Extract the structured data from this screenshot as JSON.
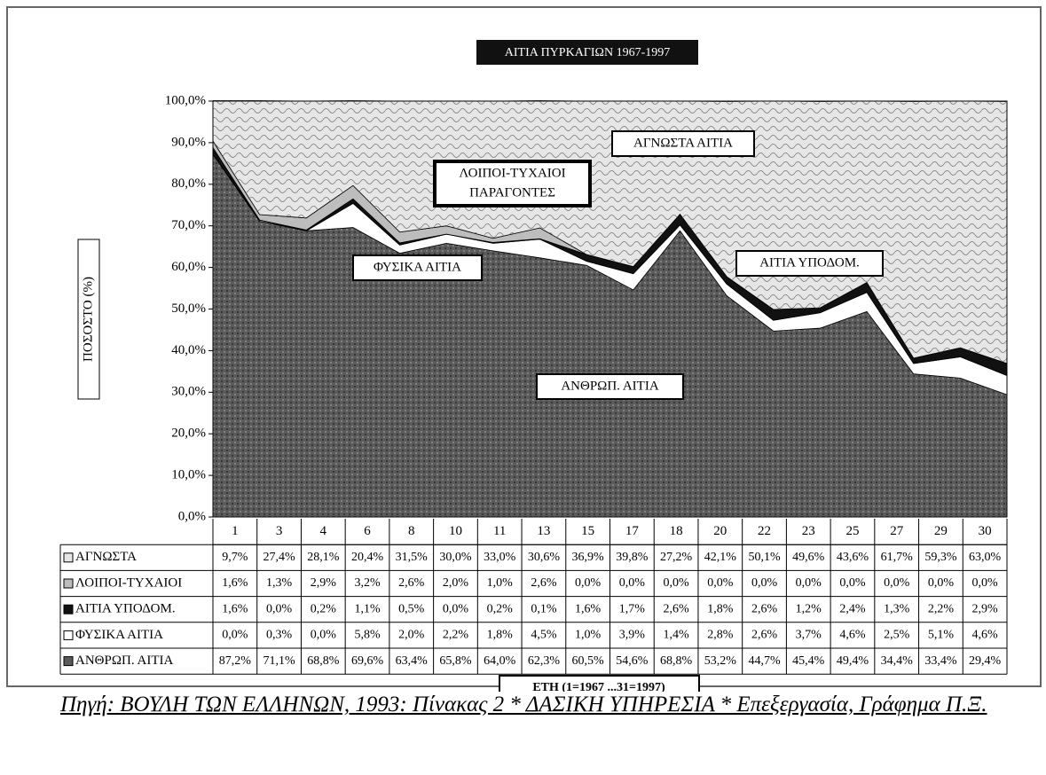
{
  "chart_data": {
    "type": "stacked-area",
    "title": "ΑΙΤΙΑ ΠΥΡΚΑΓΙΩΝ 1967-1997",
    "y_label": "ΠΟΣΟΣΤΟ (%)",
    "x_label": "ΕΤΗ (1=1967 ...31=1997)",
    "categories": [
      "1",
      "3",
      "4",
      "6",
      "8",
      "10",
      "11",
      "13",
      "15",
      "17",
      "18",
      "20",
      "22",
      "23",
      "25",
      "27",
      "29",
      "30"
    ],
    "ylim": [
      0,
      100
    ],
    "yticks": [
      {
        "value": 0,
        "label": "0,0%"
      },
      {
        "value": 10,
        "label": "10,0%"
      },
      {
        "value": 20,
        "label": "20,0%"
      },
      {
        "value": 30,
        "label": "30,0%"
      },
      {
        "value": 40,
        "label": "40,0%"
      },
      {
        "value": 50,
        "label": "50,0%"
      },
      {
        "value": 60,
        "label": "60,0%"
      },
      {
        "value": 70,
        "label": "70,0%"
      },
      {
        "value": 80,
        "label": "80,0%"
      },
      {
        "value": 90,
        "label": "90,0%"
      },
      {
        "value": 100,
        "label": "100,0%"
      }
    ],
    "grid": false,
    "series": [
      {
        "name": "ΑΝΘΡΩΠ. ΑΙΤΙΑ",
        "color": "#5a5a5a",
        "values": [
          87.2,
          71.1,
          68.8,
          69.6,
          63.4,
          65.8,
          64.0,
          62.3,
          60.5,
          54.6,
          68.8,
          53.2,
          44.7,
          45.4,
          49.4,
          34.4,
          33.4,
          29.4
        ],
        "value_labels": [
          "87,2%",
          "71,1%",
          "68,8%",
          "69,6%",
          "63,4%",
          "65,8%",
          "64,0%",
          "62,3%",
          "60,5%",
          "54,6%",
          "68,8%",
          "53,2%",
          "44,7%",
          "45,4%",
          "49,4%",
          "34,4%",
          "33,4%",
          "29,4%"
        ]
      },
      {
        "name": "ΦΥΣΙΚΑ ΑΙΤΙΑ",
        "color": "#ffffff",
        "values": [
          0.0,
          0.3,
          0.0,
          5.8,
          2.0,
          2.2,
          1.8,
          4.5,
          1.0,
          3.9,
          1.4,
          2.8,
          2.6,
          3.7,
          4.6,
          2.5,
          5.1,
          4.6
        ],
        "value_labels": [
          "0,0%",
          "0,3%",
          "0,0%",
          "5,8%",
          "2,0%",
          "2,2%",
          "1,8%",
          "4,5%",
          "1,0%",
          "3,9%",
          "1,4%",
          "2,8%",
          "2,6%",
          "3,7%",
          "4,6%",
          "2,5%",
          "5,1%",
          "4,6%"
        ]
      },
      {
        "name": "ΑΙΤΙΑ ΥΠΟΔΟΜ.",
        "color": "#111111",
        "values": [
          1.6,
          0.0,
          0.2,
          1.1,
          0.5,
          0.0,
          0.2,
          0.1,
          1.6,
          1.7,
          2.6,
          1.8,
          2.6,
          1.2,
          2.4,
          1.3,
          2.2,
          2.9
        ],
        "value_labels": [
          "1,6%",
          "0,0%",
          "0,2%",
          "1,1%",
          "0,5%",
          "0,0%",
          "0,2%",
          "0,1%",
          "1,6%",
          "1,7%",
          "2,6%",
          "1,8%",
          "2,6%",
          "1,2%",
          "2,4%",
          "1,3%",
          "2,2%",
          "2,9%"
        ]
      },
      {
        "name": "ΛΟΙΠΟΙ-ΤΥΧΑΙΟΙ",
        "color": "#bdbdbd",
        "values": [
          1.6,
          1.3,
          2.9,
          3.2,
          2.6,
          2.0,
          1.0,
          2.6,
          0.0,
          0.0,
          0.0,
          0.0,
          0.0,
          0.0,
          0.0,
          0.0,
          0.0,
          0.0
        ],
        "value_labels": [
          "1,6%",
          "1,3%",
          "2,9%",
          "3,2%",
          "2,6%",
          "2,0%",
          "1,0%",
          "2,6%",
          "0,0%",
          "0,0%",
          "0,0%",
          "0,0%",
          "0,0%",
          "0,0%",
          "0,0%",
          "0,0%",
          "0,0%",
          "0,0%"
        ]
      },
      {
        "name": "ΑΓΝΩΣΤΑ",
        "color": "#e6e6e6",
        "values": [
          9.7,
          27.4,
          28.1,
          20.4,
          31.5,
          30.0,
          33.0,
          30.6,
          36.9,
          39.8,
          27.2,
          42.1,
          50.1,
          49.6,
          43.6,
          61.7,
          59.3,
          63.0
        ],
        "value_labels": [
          "9,7%",
          "27,4%",
          "28,1%",
          "20,4%",
          "31,5%",
          "30,0%",
          "33,0%",
          "30,6%",
          "36,9%",
          "39,8%",
          "27,2%",
          "42,1%",
          "50,1%",
          "49,6%",
          "43,6%",
          "61,7%",
          "59,3%",
          "63,0%"
        ]
      }
    ],
    "annotations": [
      {
        "lines": [
          "ΑΓΝΩΣΤΑ ΑΙΤΙΑ"
        ]
      },
      {
        "lines": [
          "ΛΟΙΠΟΙ-ΤΥΧΑΙΟΙ",
          "ΠΑΡΑΓΟΝΤΕΣ"
        ]
      },
      {
        "lines": [
          "ΦΥΣΙΚΑ ΑΙΤΙΑ"
        ]
      },
      {
        "lines": [
          "ΑΙΤΙΑ ΥΠΟΔΟΜ."
        ]
      },
      {
        "lines": [
          "ΑΝΘΡΩΠ. ΑΙΤΙΑ"
        ]
      }
    ],
    "source": "Πηγή: ΒΟΥΛΗ ΤΩΝ ΕΛΛΗΝΩΝ, 1993: Πίνακας 2 * ΔΑΣΙΚΗ ΥΠΗΡΕΣΙΑ * Επεξεργασία, Γράφημα Π.Ξ."
  }
}
